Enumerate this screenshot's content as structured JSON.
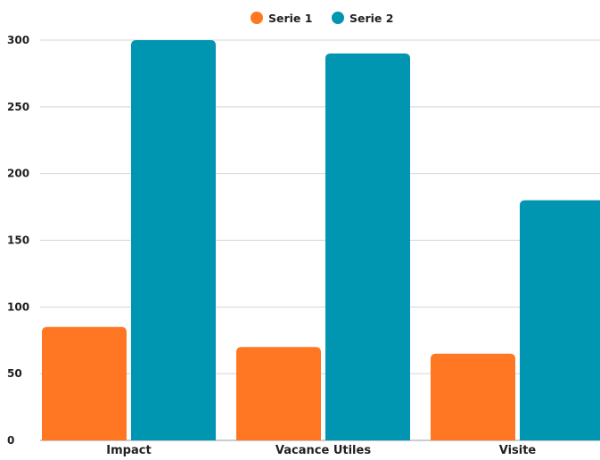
{
  "chart_data": {
    "type": "bar",
    "title": "",
    "xlabel": "",
    "ylabel": "",
    "categories": [
      "Impact",
      "Vacance Utiles",
      "Visite"
    ],
    "series": [
      {
        "name": "Serie 1",
        "color": "#FF7722",
        "values": [
          85,
          70,
          65
        ]
      },
      {
        "name": "Serie 2",
        "color": "#0095B0",
        "values": [
          300,
          290,
          180
        ]
      }
    ],
    "ylim": [
      0,
      300
    ],
    "yticks": [
      0,
      50,
      100,
      150,
      200,
      250,
      300
    ],
    "grid": true,
    "legend_position": "top-center"
  }
}
